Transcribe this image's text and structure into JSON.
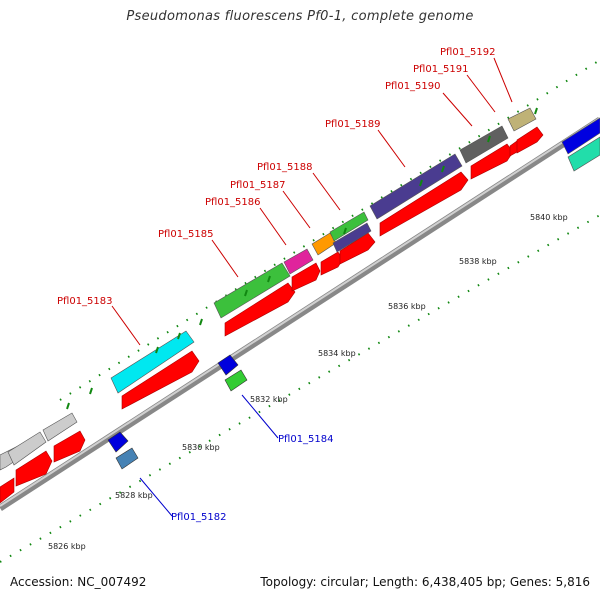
{
  "title": "Pseudomonas fluorescens Pf0-1, complete genome",
  "footer": {
    "accession": "Accession: NC_007492",
    "summary": "Topology: circular; Length: 6,438,405 bp; Genes: 5,816"
  },
  "colors": {
    "forward_strand": "#ff0000",
    "reverse_label": "#0000cc",
    "forward_label": "#cc0000",
    "tick": "#118811",
    "backbone": "#888888"
  },
  "ticks": [
    "5826 kbp",
    "5828 kbp",
    "5830 kbp",
    "5832 kbp",
    "5834 kbp",
    "5836 kbp",
    "5838 kbp",
    "5840 kbp"
  ],
  "labels_top": [
    "Pfl01_5183",
    "Pfl01_5185",
    "Pfl01_5186",
    "Pfl01_5187",
    "Pfl01_5188",
    "Pfl01_5189",
    "Pfl01_5190",
    "Pfl01_5191",
    "Pfl01_5192"
  ],
  "labels_bottom": [
    "Pfl01_5182",
    "Pfl01_5184"
  ]
}
